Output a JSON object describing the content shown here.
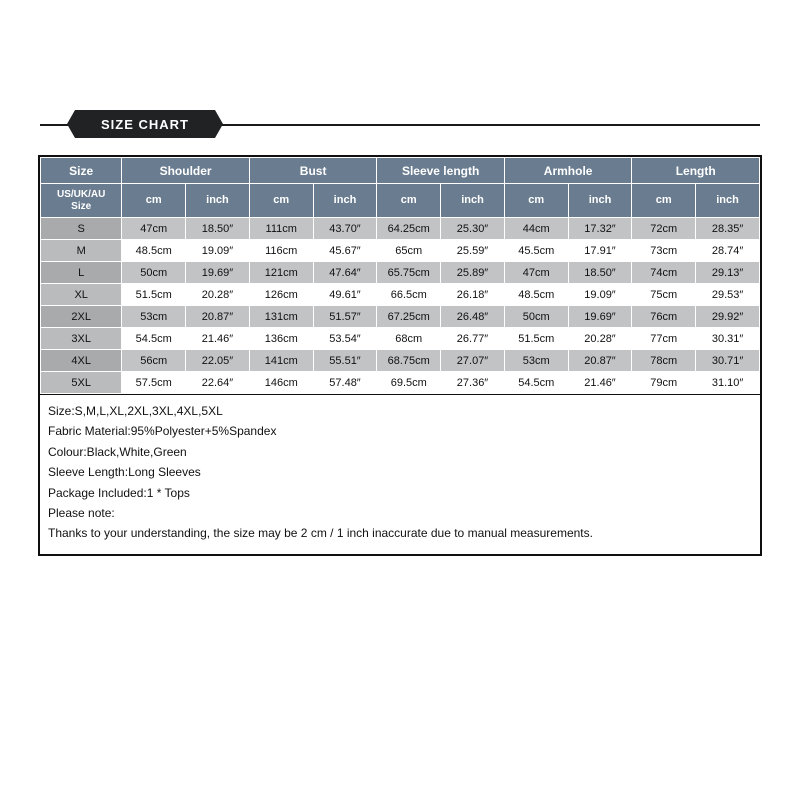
{
  "banner": {
    "title": "SIZE CHART"
  },
  "table": {
    "type": "table",
    "header_bg": "#6a7d90",
    "header_fg": "#ffffff",
    "row_bg": "#ffffff",
    "row_alt_bg": "#c2c3c5",
    "size_col_bg": "#b9bbbd",
    "border_color": "#ffffff",
    "top_headers": [
      "Size",
      "Shoulder",
      "Bust",
      "Sleeve length",
      "Armhole",
      "Length"
    ],
    "sub_size_label_a": "US/UK/AU",
    "sub_size_label_b": "Size",
    "unit_cm": "cm",
    "unit_inch": "inch",
    "rows": [
      {
        "size": "S",
        "shoulder_cm": "47cm",
        "shoulder_in": "18.50″",
        "bust_cm": "111cm",
        "bust_in": "43.70″",
        "sleeve_cm": "64.25cm",
        "sleeve_in": "25.30″",
        "arm_cm": "44cm",
        "arm_in": "17.32″",
        "len_cm": "72cm",
        "len_in": "28.35″"
      },
      {
        "size": "M",
        "shoulder_cm": "48.5cm",
        "shoulder_in": "19.09″",
        "bust_cm": "116cm",
        "bust_in": "45.67″",
        "sleeve_cm": "65cm",
        "sleeve_in": "25.59″",
        "arm_cm": "45.5cm",
        "arm_in": "17.91″",
        "len_cm": "73cm",
        "len_in": "28.74″"
      },
      {
        "size": "L",
        "shoulder_cm": "50cm",
        "shoulder_in": "19.69″",
        "bust_cm": "121cm",
        "bust_in": "47.64″",
        "sleeve_cm": "65.75cm",
        "sleeve_in": "25.89″",
        "arm_cm": "47cm",
        "arm_in": "18.50″",
        "len_cm": "74cm",
        "len_in": "29.13″"
      },
      {
        "size": "XL",
        "shoulder_cm": "51.5cm",
        "shoulder_in": "20.28″",
        "bust_cm": "126cm",
        "bust_in": "49.61″",
        "sleeve_cm": "66.5cm",
        "sleeve_in": "26.18″",
        "arm_cm": "48.5cm",
        "arm_in": "19.09″",
        "len_cm": "75cm",
        "len_in": "29.53″"
      },
      {
        "size": "2XL",
        "shoulder_cm": "53cm",
        "shoulder_in": "20.87″",
        "bust_cm": "131cm",
        "bust_in": "51.57″",
        "sleeve_cm": "67.25cm",
        "sleeve_in": "26.48″",
        "arm_cm": "50cm",
        "arm_in": "19.69″",
        "len_cm": "76cm",
        "len_in": "29.92″"
      },
      {
        "size": "3XL",
        "shoulder_cm": "54.5cm",
        "shoulder_in": "21.46″",
        "bust_cm": "136cm",
        "bust_in": "53.54″",
        "sleeve_cm": "68cm",
        "sleeve_in": "26.77″",
        "arm_cm": "51.5cm",
        "arm_in": "20.28″",
        "len_cm": "77cm",
        "len_in": "30.31″"
      },
      {
        "size": "4XL",
        "shoulder_cm": "56cm",
        "shoulder_in": "22.05″",
        "bust_cm": "141cm",
        "bust_in": "55.51″",
        "sleeve_cm": "68.75cm",
        "sleeve_in": "27.07″",
        "arm_cm": "53cm",
        "arm_in": "20.87″",
        "len_cm": "78cm",
        "len_in": "30.71″"
      },
      {
        "size": "5XL",
        "shoulder_cm": "57.5cm",
        "shoulder_in": "22.64″",
        "bust_cm": "146cm",
        "bust_in": "57.48″",
        "sleeve_cm": "69.5cm",
        "sleeve_in": "27.36″",
        "arm_cm": "54.5cm",
        "arm_in": "21.46″",
        "len_cm": "79cm",
        "len_in": "31.10″"
      }
    ]
  },
  "notes": {
    "lines": [
      "Size:S,M,L,XL,2XL,3XL,4XL,5XL",
      "Fabric Material:95%Polyester+5%Spandex",
      "Colour:Black,White,Green",
      "Sleeve Length:Long Sleeves",
      "Package Included:1 * Tops",
      "Please note:",
      "Thanks to your understanding, the size may be 2 cm / 1 inch inaccurate due to manual measurements."
    ]
  }
}
